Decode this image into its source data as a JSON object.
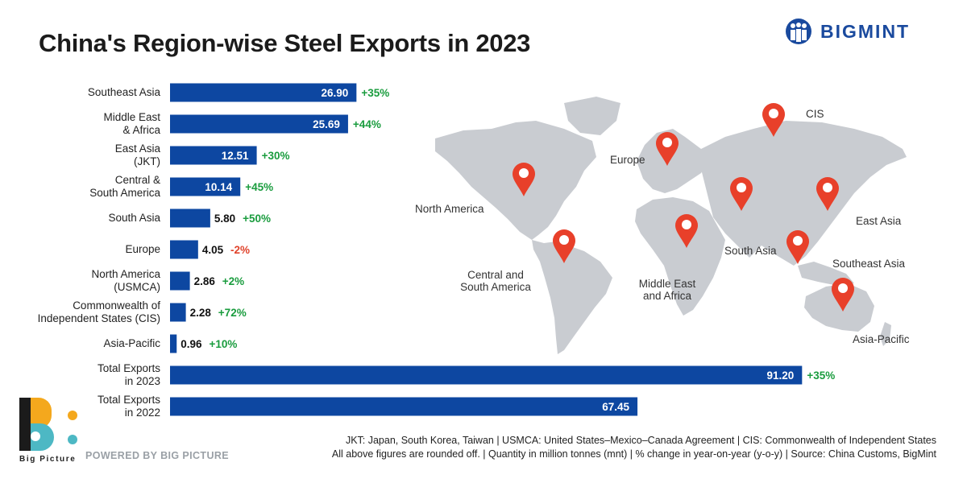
{
  "title": "China's Region-wise Steel Exports in 2023",
  "brand": {
    "name": "BIGMINT",
    "color": "#1a4a9e",
    "icon": "bigmint-people-icon"
  },
  "chart_data": {
    "type": "bar",
    "orientation": "horizontal",
    "title": "China's Region-wise Steel Exports in 2023",
    "unit": "million tonnes (mnt)",
    "bar_color": "#0d47a1",
    "positive_color": "#1a9c3e",
    "negative_color": "#e0432b",
    "categories": [
      [
        "Southeast Asia"
      ],
      [
        "Middle East",
        "& Africa"
      ],
      [
        "East Asia",
        "(JKT)"
      ],
      [
        "Central &",
        "South America"
      ],
      [
        "South Asia"
      ],
      [
        "Europe"
      ],
      [
        "North America",
        "(USMCA)"
      ],
      [
        "Commonwealth of",
        "Independent States (CIS)"
      ],
      [
        "Asia-Pacific"
      ],
      [
        "Total Exports",
        "in 2023"
      ],
      [
        "Total Exports",
        "in 2022"
      ]
    ],
    "values": [
      26.9,
      25.69,
      12.51,
      10.14,
      5.8,
      4.05,
      2.86,
      2.28,
      0.96,
      91.2,
      67.45
    ],
    "value_labels": [
      "26.90",
      "25.69",
      "12.51",
      "10.14",
      "5.80",
      "4.05",
      "2.86",
      "2.28",
      "0.96",
      "91.20",
      "67.45"
    ],
    "changes": [
      "+35%",
      "+44%",
      "+30%",
      "+45%",
      "+50%",
      "-2%",
      "+2%",
      "+72%",
      "+10%",
      "+35%",
      ""
    ],
    "xlim": [
      0,
      100
    ]
  },
  "map": {
    "labels": {
      "cis": "CIS",
      "europe": "Europe",
      "north_america": "North America",
      "east_asia": "East Asia",
      "south_asia": "South Asia",
      "southeast_asia": "Southeast Asia",
      "central_south_america_1": "Central and",
      "central_south_america_2": "South America",
      "middle_east_africa_1": "Middle East",
      "middle_east_africa_2": "and Africa",
      "asia_pacific": "Asia-Pacific"
    },
    "land_color": "#c9ccd1",
    "pin_color": "#e8402a"
  },
  "footnotes": {
    "line1": "JKT: Japan, South Korea, Taiwan | USMCA: United States–Mexico–Canada Agreement | CIS: Commonwealth of Independent States",
    "line2": "All above figures are rounded off. | Quantity in million tonnes (mnt) | % change in year-on-year (y-o-y) | Source: China Customs, BigMint"
  },
  "footer": {
    "logo_text": "Big Picture",
    "powered_by": "POWERED BY BIG PICTURE"
  }
}
